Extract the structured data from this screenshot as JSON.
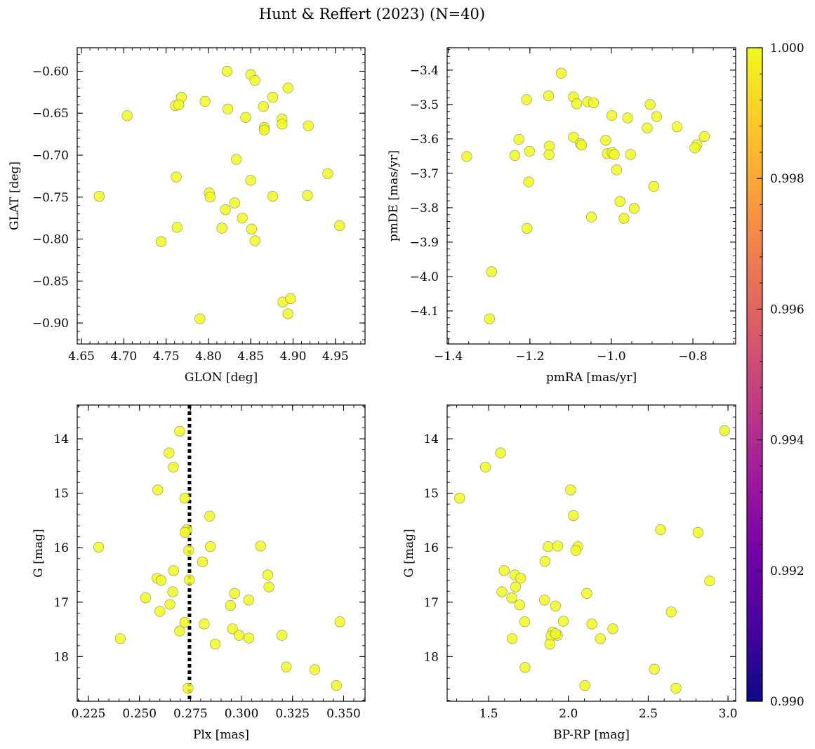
{
  "title": "Hunt & Reffert (2023) (N=40)",
  "colors": {
    "marker_fill": "#f0f921",
    "marker_edge": "#8f8f50",
    "vline": "#000000",
    "colormap": [
      "#0d0887",
      "#46039f",
      "#7201a8",
      "#9c179e",
      "#bd3786",
      "#d8576b",
      "#ed7953",
      "#fb9f3a",
      "#fdca26",
      "#f0f921"
    ]
  },
  "colorbar": {
    "min": 0.99,
    "max": 1.0,
    "ticks": [
      0.99,
      0.992,
      0.994,
      0.996,
      0.998,
      1.0
    ],
    "tick_labels": [
      "0.990",
      "0.992",
      "0.994",
      "0.996",
      "0.998",
      "1.000"
    ],
    "colormap_name": "plasma"
  },
  "chart_data": [
    {
      "id": "glon-glat",
      "type": "scatter",
      "xlabel": "GLON [deg]",
      "ylabel": "GLAT [deg]",
      "xlim": [
        4.645,
        4.985
      ],
      "ylim": [
        -0.925,
        -0.572
      ],
      "invert_y": false,
      "xticks": [
        4.65,
        4.7,
        4.75,
        4.8,
        4.85,
        4.9,
        4.95
      ],
      "xtick_labels": [
        "4.65",
        "4.70",
        "4.75",
        "4.80",
        "4.85",
        "4.90",
        "4.95"
      ],
      "yticks": [
        -0.6,
        -0.65,
        -0.7,
        -0.75,
        -0.8,
        -0.85,
        -0.9
      ],
      "ytick_labels": [
        "−0.60",
        "−0.65",
        "−0.70",
        "−0.75",
        "−0.80",
        "−0.85",
        "−0.90"
      ],
      "xminor_step": 0.01,
      "yminor_step": 0.01,
      "points": [
        [
          4.822,
          -0.6
        ],
        [
          4.85,
          -0.604
        ],
        [
          4.855,
          -0.611
        ],
        [
          4.894,
          -0.62
        ],
        [
          4.768,
          -0.631
        ],
        [
          4.876,
          -0.631
        ],
        [
          4.796,
          -0.636
        ],
        [
          4.761,
          -0.641
        ],
        [
          4.765,
          -0.64
        ],
        [
          4.865,
          -0.642
        ],
        [
          4.823,
          -0.645
        ],
        [
          4.704,
          -0.653
        ],
        [
          4.844,
          -0.655
        ],
        [
          4.887,
          -0.657
        ],
        [
          4.887,
          -0.663
        ],
        [
          4.918,
          -0.665
        ],
        [
          4.866,
          -0.667
        ],
        [
          4.866,
          -0.67
        ],
        [
          4.833,
          -0.705
        ],
        [
          4.941,
          -0.722
        ],
        [
          4.762,
          -0.726
        ],
        [
          4.85,
          -0.73
        ],
        [
          4.801,
          -0.745
        ],
        [
          4.671,
          -0.749
        ],
        [
          4.876,
          -0.749
        ],
        [
          4.917,
          -0.748
        ],
        [
          4.802,
          -0.75
        ],
        [
          4.831,
          -0.757
        ],
        [
          4.82,
          -0.765
        ],
        [
          4.84,
          -0.775
        ],
        [
          4.955,
          -0.784
        ],
        [
          4.763,
          -0.786
        ],
        [
          4.816,
          -0.787
        ],
        [
          4.851,
          -0.788
        ],
        [
          4.744,
          -0.803
        ],
        [
          4.855,
          -0.802
        ],
        [
          4.888,
          -0.875
        ],
        [
          4.897,
          -0.871
        ],
        [
          4.894,
          -0.889
        ],
        [
          4.79,
          -0.895
        ]
      ],
      "probabilities_all": 1.0
    },
    {
      "id": "pmra-pmde",
      "type": "scatter",
      "xlabel": "pmRA [mas/yr]",
      "ylabel": "pmDE [mas/yr]",
      "xlim": [
        -1.403,
        -0.695
      ],
      "ylim": [
        -4.196,
        -3.335
      ],
      "invert_y": false,
      "xticks": [
        -1.4,
        -1.2,
        -1.0,
        -0.8
      ],
      "xtick_labels": [
        "−1.4",
        "−1.2",
        "−1.0",
        "−0.8"
      ],
      "yticks": [
        -3.4,
        -3.5,
        -3.6,
        -3.7,
        -3.8,
        -3.9,
        -4.0,
        -4.1
      ],
      "ytick_labels": [
        "−3.4",
        "−3.5",
        "−3.6",
        "−3.7",
        "−3.8",
        "−3.9",
        "−4.0",
        "−4.1"
      ],
      "xminor_step": 0.05,
      "yminor_step": 0.02,
      "points": [
        [
          -1.123,
          -3.409
        ],
        [
          -1.154,
          -3.475
        ],
        [
          -1.208,
          -3.486
        ],
        [
          -1.093,
          -3.478
        ],
        [
          -1.085,
          -3.498
        ],
        [
          -1.058,
          -3.492
        ],
        [
          -1.044,
          -3.495
        ],
        [
          -0.905,
          -3.5
        ],
        [
          -0.999,
          -3.532
        ],
        [
          -0.96,
          -3.539
        ],
        [
          -0.889,
          -3.535
        ],
        [
          -0.839,
          -3.565
        ],
        [
          -0.912,
          -3.568
        ],
        [
          -0.772,
          -3.593
        ],
        [
          -1.093,
          -3.595
        ],
        [
          -1.227,
          -3.601
        ],
        [
          -1.014,
          -3.604
        ],
        [
          -0.79,
          -3.617
        ],
        [
          -0.795,
          -3.626
        ],
        [
          -1.076,
          -3.614
        ],
        [
          -1.073,
          -3.618
        ],
        [
          -1.152,
          -3.621
        ],
        [
          -1.201,
          -3.636
        ],
        [
          -1.355,
          -3.651
        ],
        [
          -1.237,
          -3.648
        ],
        [
          -1.153,
          -3.646
        ],
        [
          -1.01,
          -3.643
        ],
        [
          -0.998,
          -3.64
        ],
        [
          -0.993,
          -3.645
        ],
        [
          -0.953,
          -3.645
        ],
        [
          -0.987,
          -3.69
        ],
        [
          -1.203,
          -3.725
        ],
        [
          -0.896,
          -3.738
        ],
        [
          -0.979,
          -3.782
        ],
        [
          -0.944,
          -3.802
        ],
        [
          -1.049,
          -3.827
        ],
        [
          -0.969,
          -3.831
        ],
        [
          -1.207,
          -3.86
        ],
        [
          -1.294,
          -3.986
        ],
        [
          -1.299,
          -4.123
        ]
      ],
      "probabilities_all": 1.0
    },
    {
      "id": "plx-g",
      "type": "scatter",
      "xlabel": "Plx [mas]",
      "ylabel": "G [mag]",
      "xlim": [
        0.2195,
        0.3605
      ],
      "ylim": [
        18.82,
        13.38
      ],
      "invert_y": true,
      "vline": 0.2745,
      "xticks": [
        0.225,
        0.25,
        0.275,
        0.3,
        0.325,
        0.35
      ],
      "xtick_labels": [
        "0.225",
        "0.250",
        "0.275",
        "0.300",
        "0.325",
        "0.350"
      ],
      "yticks": [
        14,
        15,
        16,
        17,
        18
      ],
      "ytick_labels": [
        "14",
        "15",
        "16",
        "17",
        "18"
      ],
      "xminor_step": 0.005,
      "yminor_step": 0.2,
      "points": [
        [
          0.2697,
          13.86
        ],
        [
          0.2645,
          14.26
        ],
        [
          0.2666,
          14.52
        ],
        [
          0.259,
          14.94
        ],
        [
          0.2722,
          15.09
        ],
        [
          0.2844,
          15.42
        ],
        [
          0.2732,
          15.67
        ],
        [
          0.2723,
          15.72
        ],
        [
          0.23,
          15.99
        ],
        [
          0.2847,
          15.98
        ],
        [
          0.3093,
          15.97
        ],
        [
          0.2741,
          16.05
        ],
        [
          0.2809,
          16.26
        ],
        [
          0.2667,
          16.42
        ],
        [
          0.3129,
          16.5
        ],
        [
          0.2586,
          16.56
        ],
        [
          0.2606,
          16.6
        ],
        [
          0.2745,
          16.59
        ],
        [
          0.3134,
          16.72
        ],
        [
          0.2663,
          16.81
        ],
        [
          0.2966,
          16.84
        ],
        [
          0.253,
          16.92
        ],
        [
          0.3035,
          16.96
        ],
        [
          0.2649,
          17.04
        ],
        [
          0.2946,
          17.06
        ],
        [
          0.26,
          17.17
        ],
        [
          0.2722,
          17.37
        ],
        [
          0.3482,
          17.36
        ],
        [
          0.2817,
          17.4
        ],
        [
          0.2956,
          17.49
        ],
        [
          0.2697,
          17.53
        ],
        [
          0.2988,
          17.61
        ],
        [
          0.3198,
          17.61
        ],
        [
          0.3036,
          17.66
        ],
        [
          0.2406,
          17.67
        ],
        [
          0.2871,
          17.77
        ],
        [
          0.3219,
          18.19
        ],
        [
          0.3359,
          18.24
        ],
        [
          0.3465,
          18.53
        ],
        [
          0.2738,
          18.58
        ]
      ],
      "probabilities_all": 1.0
    },
    {
      "id": "bprp-g",
      "type": "scatter",
      "xlabel": "BP-RP [mag]",
      "ylabel": "G [mag]",
      "xlim": [
        1.24,
        3.048
      ],
      "ylim": [
        18.82,
        13.38
      ],
      "invert_y": true,
      "xticks": [
        1.5,
        2.0,
        2.5,
        3.0
      ],
      "xtick_labels": [
        "1.5",
        "2.0",
        "2.5",
        "3.0"
      ],
      "yticks": [
        14,
        15,
        16,
        17,
        18
      ],
      "ytick_labels": [
        "14",
        "15",
        "16",
        "17",
        "18"
      ],
      "xminor_step": 0.1,
      "yminor_step": 0.2,
      "points": [
        [
          2.978,
          13.85
        ],
        [
          1.575,
          14.26
        ],
        [
          1.48,
          14.52
        ],
        [
          1.318,
          15.09
        ],
        [
          2.014,
          14.94
        ],
        [
          2.031,
          15.41
        ],
        [
          2.578,
          15.67
        ],
        [
          2.812,
          15.72
        ],
        [
          1.873,
          15.98
        ],
        [
          1.933,
          15.97
        ],
        [
          2.059,
          15.98
        ],
        [
          2.046,
          16.05
        ],
        [
          1.853,
          16.25
        ],
        [
          1.597,
          16.42
        ],
        [
          1.664,
          16.5
        ],
        [
          1.701,
          16.56
        ],
        [
          1.669,
          16.72
        ],
        [
          2.885,
          16.61
        ],
        [
          1.583,
          16.81
        ],
        [
          2.115,
          16.84
        ],
        [
          1.645,
          16.92
        ],
        [
          1.85,
          16.96
        ],
        [
          1.694,
          17.05
        ],
        [
          1.919,
          17.07
        ],
        [
          2.644,
          17.18
        ],
        [
          1.726,
          17.36
        ],
        [
          1.968,
          17.35
        ],
        [
          2.147,
          17.4
        ],
        [
          2.278,
          17.49
        ],
        [
          1.901,
          17.55
        ],
        [
          1.931,
          17.61
        ],
        [
          1.891,
          17.62
        ],
        [
          1.647,
          17.67
        ],
        [
          2.2,
          17.67
        ],
        [
          1.883,
          17.77
        ],
        [
          1.728,
          18.2
        ],
        [
          2.538,
          18.23
        ],
        [
          2.103,
          18.53
        ],
        [
          2.674,
          18.58
        ],
        [
          1.92,
          17.58
        ]
      ],
      "probabilities_all": 1.0
    }
  ]
}
